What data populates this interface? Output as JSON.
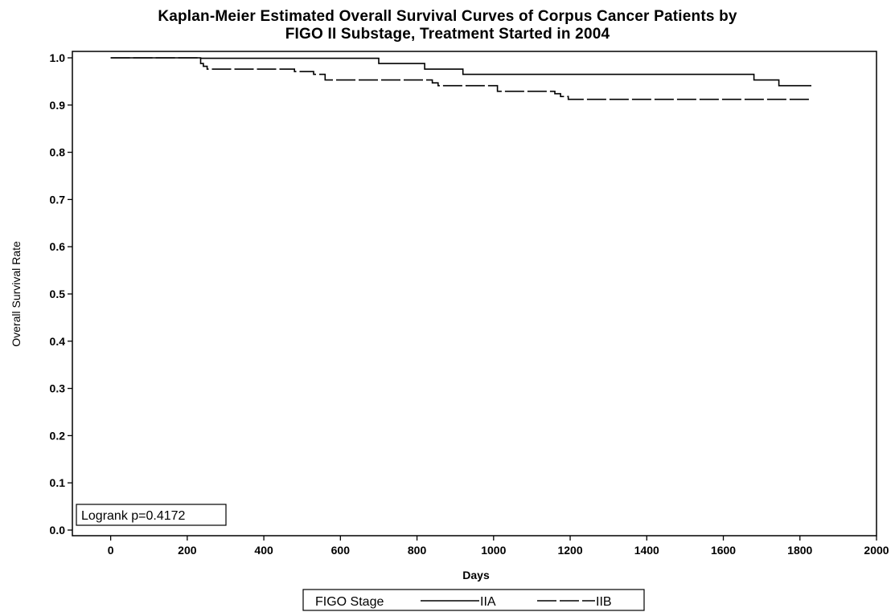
{
  "chart_data": {
    "type": "line",
    "title_line_1": "Kaplan-Meier Estimated Overall Survival Curves of Corpus Cancer Patients by",
    "title_line_2": "FIGO II Substage, Treatment Started in 2004",
    "xlabel": "Days",
    "ylabel": "Overall Survival Rate",
    "xlim": [
      -100,
      2000
    ],
    "ylim": [
      0.0,
      1.0
    ],
    "x_ticks": [
      "0",
      "200",
      "400",
      "600",
      "800",
      "1000",
      "1200",
      "1400",
      "1600",
      "1800",
      "2000"
    ],
    "y_ticks": [
      "0.0",
      "0.1",
      "0.2",
      "0.3",
      "0.4",
      "0.5",
      "0.6",
      "0.7",
      "0.8",
      "0.9",
      "1.0"
    ],
    "grid": false,
    "legend": {
      "title": "FIGO Stage",
      "placement": "bottom",
      "entries": [
        "IIA",
        "IIB"
      ]
    },
    "annotation": "Logrank p=0.4172",
    "series": [
      {
        "name": "IIA",
        "style": "solid",
        "x": [
          0,
          235,
          700,
          820,
          920,
          1680,
          1745,
          1830
        ],
        "y": [
          1.0,
          0.999,
          0.988,
          0.976,
          0.965,
          0.953,
          0.941,
          0.941
        ]
      },
      {
        "name": "IIB",
        "style": "dashed",
        "x": [
          0,
          235,
          242,
          252,
          480,
          530,
          560,
          840,
          855,
          1010,
          1160,
          1175,
          1195,
          1830
        ],
        "y": [
          1.0,
          0.988,
          0.982,
          0.976,
          0.971,
          0.965,
          0.953,
          0.947,
          0.941,
          0.929,
          0.924,
          0.918,
          0.912,
          0.912
        ]
      }
    ]
  }
}
